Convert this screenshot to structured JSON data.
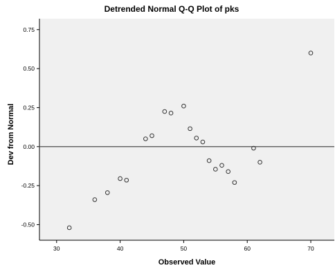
{
  "chart_data": {
    "type": "scatter",
    "title": "Detrended Normal Q-Q Plot of pks",
    "xlabel": "Observed Value",
    "ylabel": "Dev from Normal",
    "xlim": [
      27.3,
      73.7
    ],
    "ylim": [
      -0.6,
      0.82
    ],
    "xticks": [
      30,
      40,
      50,
      60,
      70
    ],
    "yticks": [
      0.75,
      0.5,
      0.25,
      0.0,
      -0.25,
      -0.5
    ],
    "ytick_labels": [
      "0.75",
      "0.50",
      "0.25",
      "0.00",
      "-0.25",
      "-0.50"
    ],
    "reference_line_y": 0,
    "grid": false,
    "colors": {
      "plot_background": "#f0f0f0",
      "marker": "#333333",
      "reference_line": "#666666"
    },
    "points": [
      {
        "x": 32,
        "y": -0.52
      },
      {
        "x": 36,
        "y": -0.34
      },
      {
        "x": 38,
        "y": -0.295
      },
      {
        "x": 40,
        "y": -0.205
      },
      {
        "x": 41,
        "y": -0.215
      },
      {
        "x": 44,
        "y": 0.05
      },
      {
        "x": 45,
        "y": 0.07
      },
      {
        "x": 47,
        "y": 0.225
      },
      {
        "x": 48,
        "y": 0.215
      },
      {
        "x": 50,
        "y": 0.26
      },
      {
        "x": 51,
        "y": 0.115
      },
      {
        "x": 52,
        "y": 0.055
      },
      {
        "x": 53,
        "y": 0.03
      },
      {
        "x": 54,
        "y": -0.09
      },
      {
        "x": 55,
        "y": -0.145
      },
      {
        "x": 56,
        "y": -0.12
      },
      {
        "x": 57,
        "y": -0.16
      },
      {
        "x": 58,
        "y": -0.23
      },
      {
        "x": 61,
        "y": -0.01
      },
      {
        "x": 62,
        "y": -0.1
      },
      {
        "x": 70,
        "y": 0.6
      }
    ]
  }
}
